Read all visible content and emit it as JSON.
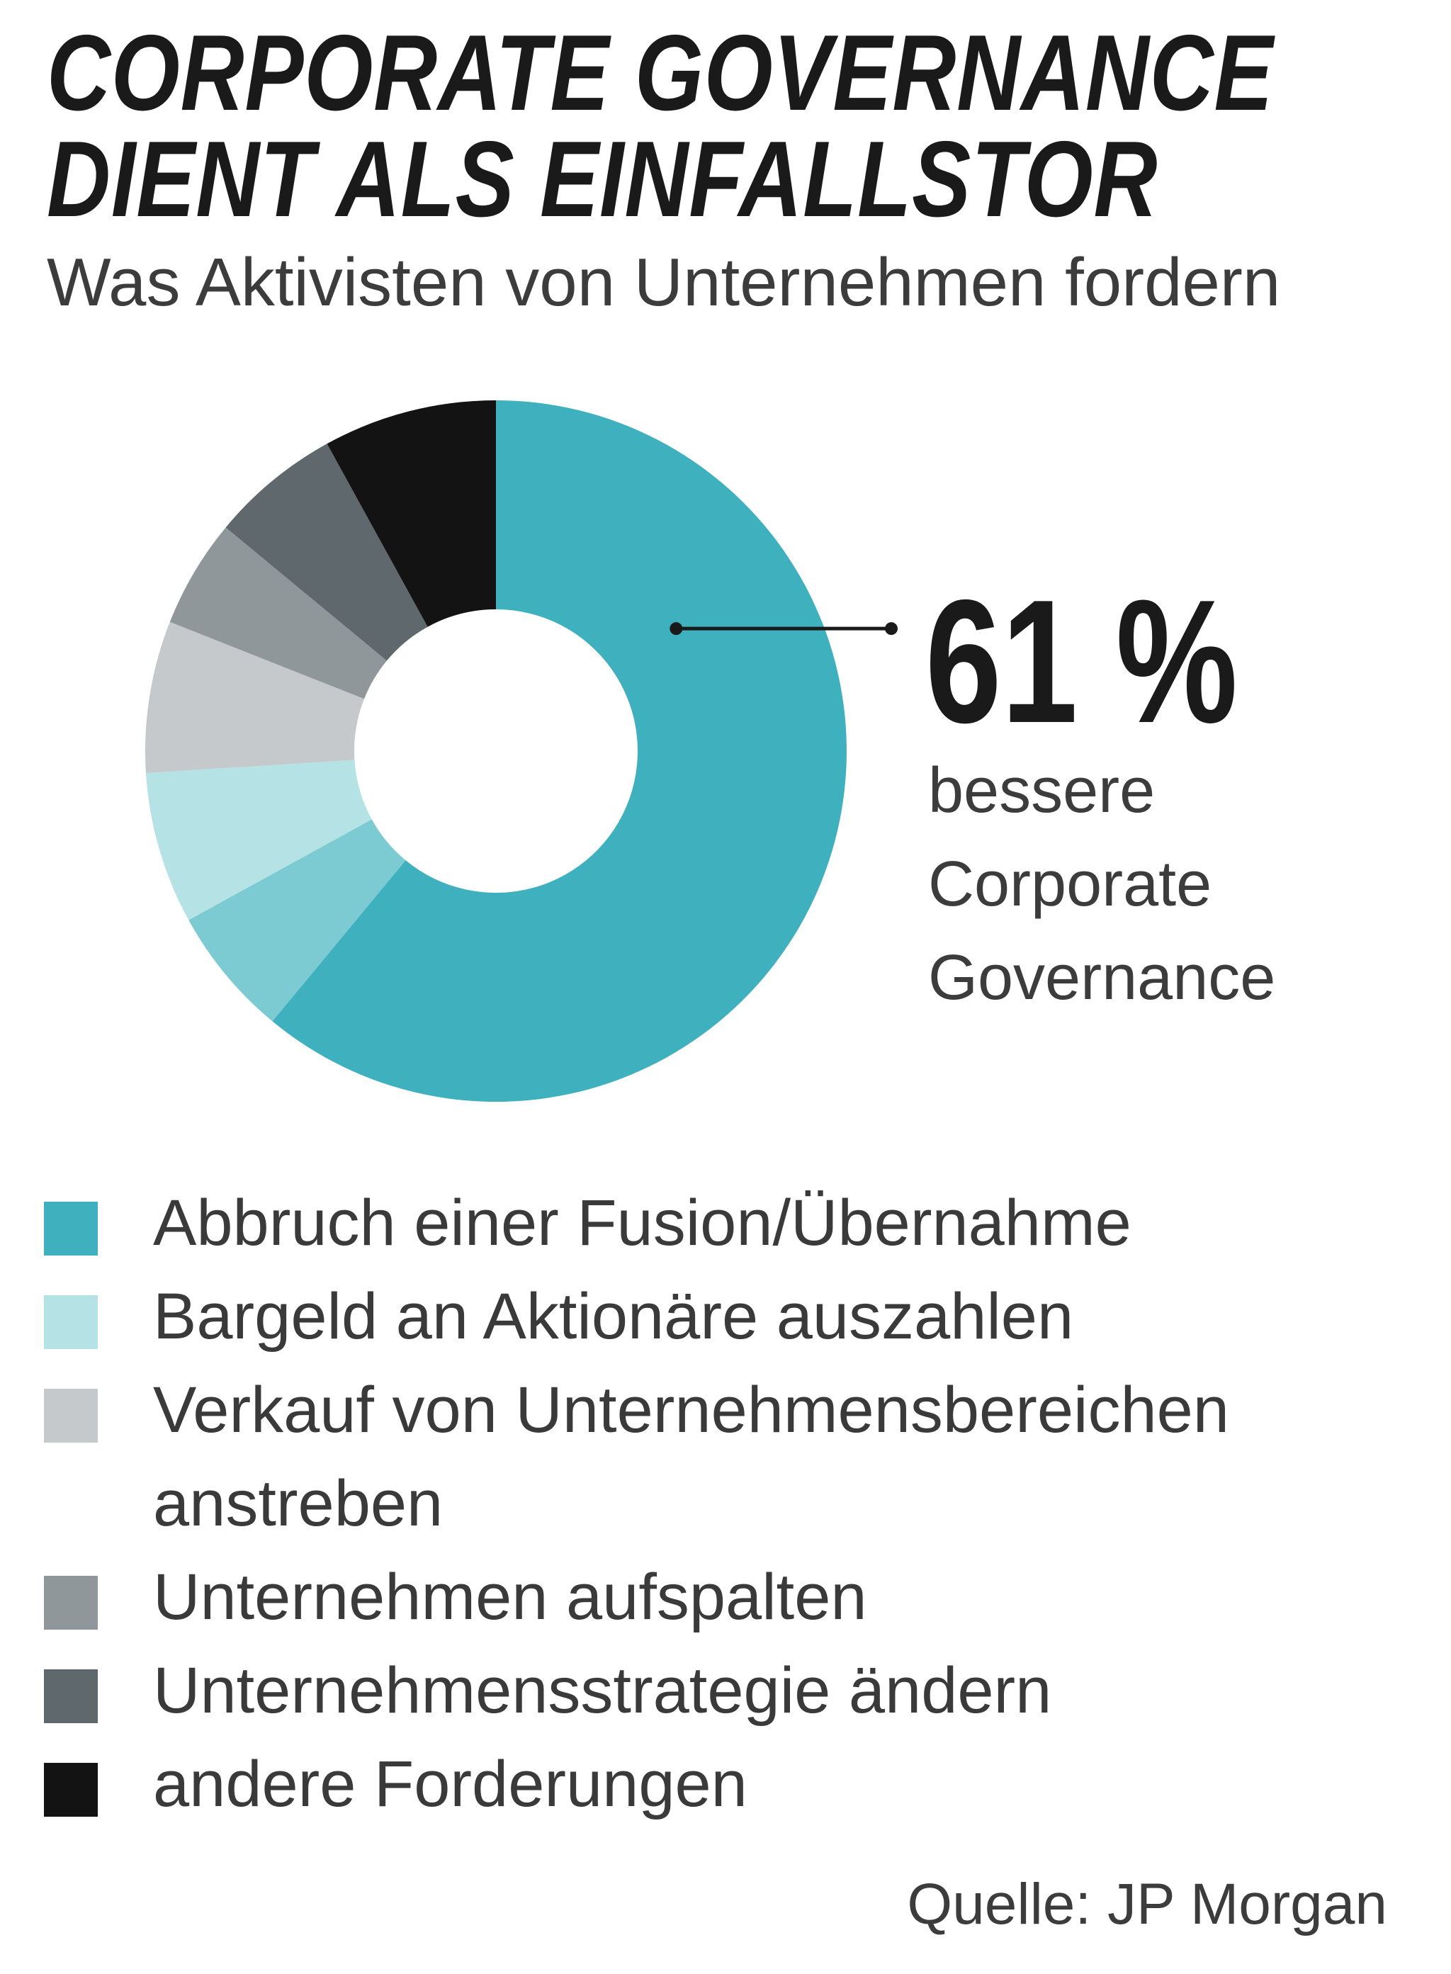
{
  "chart_data": {
    "type": "pie",
    "title": [
      "CORPORATE GOVERNANCE",
      "DIENT ALS EINFALLSTOR"
    ],
    "subtitle": "Was Aktivisten von Unternehmen fordern",
    "source": "Quelle: JP Morgan",
    "callout": {
      "value": "61 %",
      "label": [
        "bessere",
        "Corporate",
        "Governance"
      ]
    },
    "slices": [
      {
        "label": "bessere Corporate Governance",
        "value": 61,
        "color": "#3fb0bd"
      },
      {
        "label": "Abbruch einer Fusion/Übernahme",
        "value": 6,
        "color": "#7ccbd2"
      },
      {
        "label": "Bargeld an Aktionäre auszahlen",
        "value": 7,
        "color": "#b5e2e5"
      },
      {
        "label": "Verkauf von Unternehmensbereichen anstreben",
        "value": 7,
        "color": "#c6c9cb"
      },
      {
        "label": "Unternehmen aufspalten",
        "value": 5,
        "color": "#8f979b"
      },
      {
        "label": "Unternehmensstrategie ändern",
        "value": 6,
        "color": "#5f686d"
      },
      {
        "label": "andere Forderungen",
        "value": 8,
        "color": "#131313"
      }
    ],
    "legend": [
      {
        "label": "Abbruch einer Fusion/Übernahme",
        "color": "#3fb0bd"
      },
      {
        "label": "Bargeld an Aktionäre auszahlen",
        "color": "#b5e2e5"
      },
      {
        "label": "Verkauf von Unternehmensbereichen anstreben",
        "color": "#c6c9cb"
      },
      {
        "label": "Unternehmen aufspalten",
        "color": "#8f979b"
      },
      {
        "label": "Unternehmensstrategie ändern",
        "color": "#5f686d"
      },
      {
        "label": "andere Forderungen",
        "color": "#131313"
      }
    ]
  }
}
